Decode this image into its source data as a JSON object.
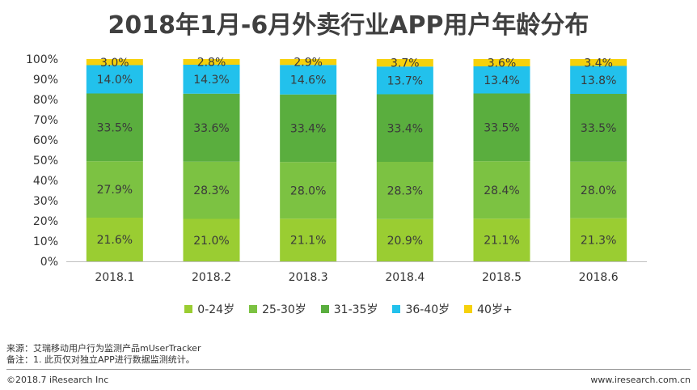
{
  "chart_data": {
    "type": "bar",
    "stacked": true,
    "title": "2018年1月-6月外卖行业APP用户年龄分布",
    "categories": [
      "2018.1",
      "2018.2",
      "2018.3",
      "2018.4",
      "2018.5",
      "2018.6"
    ],
    "series": [
      {
        "name": "0-24岁",
        "color": "#9ACD32",
        "values": [
          21.6,
          21.0,
          21.1,
          20.9,
          21.1,
          21.3
        ]
      },
      {
        "name": "25-30岁",
        "color": "#7CC242",
        "values": [
          27.9,
          28.3,
          28.0,
          28.3,
          28.4,
          28.0
        ]
      },
      {
        "name": "31-35岁",
        "color": "#5AAE3E",
        "values": [
          33.5,
          33.6,
          33.4,
          33.4,
          33.5,
          33.5
        ]
      },
      {
        "name": "36-40岁",
        "color": "#22C1EC",
        "values": [
          14.0,
          14.3,
          14.6,
          13.7,
          13.4,
          13.8
        ]
      },
      {
        "name": "40岁+",
        "color": "#F6D10B",
        "values": [
          3.0,
          2.8,
          2.9,
          3.7,
          3.6,
          3.4
        ]
      }
    ],
    "ylim": [
      0,
      100
    ],
    "yticks": [
      "0%",
      "10%",
      "20%",
      "30%",
      "40%",
      "50%",
      "60%",
      "70%",
      "80%",
      "90%",
      "100%"
    ],
    "legend_position": "bottom",
    "grid": false
  },
  "notes": {
    "source": "来源：艾瑞移动用户行为监测产品mUserTracker",
    "remark": "备注：1. 此页仅对独立APP进行数据监测统计。"
  },
  "footer": {
    "copyright": "©2018.7 iResearch Inc",
    "website": "www.iresearch.com.cn"
  }
}
